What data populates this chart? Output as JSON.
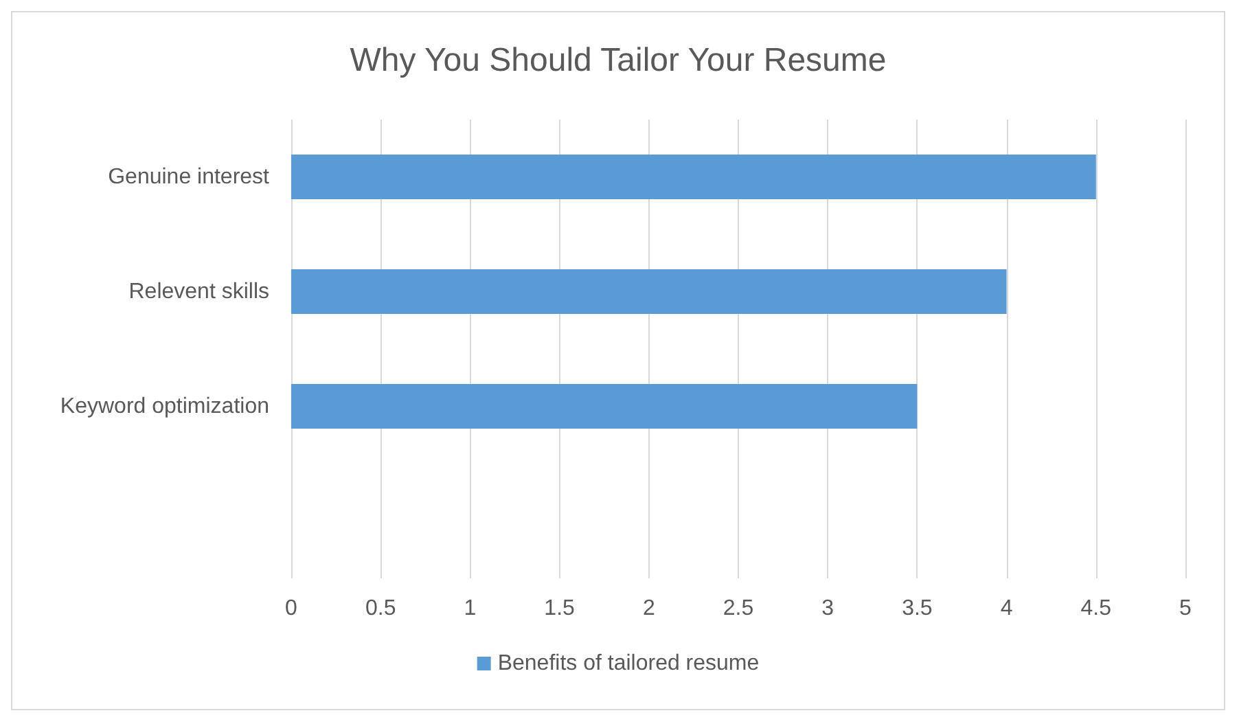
{
  "chart_data": {
    "type": "bar",
    "orientation": "horizontal",
    "title": "Why You Should Tailor Your Resume",
    "categories": [
      "Genuine interest",
      "Relevent skills",
      "Keyword optimization",
      null
    ],
    "series": [
      {
        "name": "Benefits of tailored resume",
        "color": "#5b9bd5",
        "values": [
          4.5,
          4,
          3.5,
          null
        ]
      }
    ],
    "xlim": [
      0,
      5
    ],
    "xticks": [
      0,
      0.5,
      1,
      1.5,
      2,
      2.5,
      3,
      3.5,
      4,
      4.5,
      5
    ],
    "grid": "x",
    "legend": "bottom"
  }
}
